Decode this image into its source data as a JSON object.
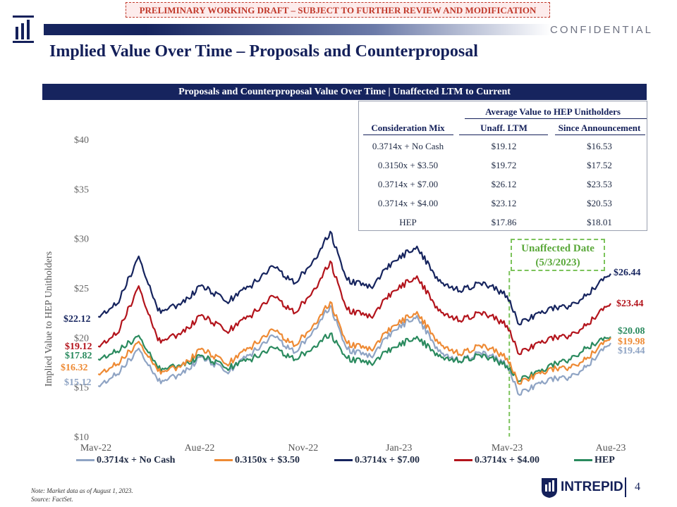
{
  "banner": "PRELIMINARY WORKING DRAFT – SUBJECT TO FURTHER REVIEW AND MODIFICATION",
  "confidential": "CONFIDENTIAL",
  "page_title": "Implied Value Over Time – Proposals and Counterproposal",
  "section_header": "Proposals and Counterproposal Value Over Time | Unaffected LTM to Current",
  "table": {
    "group_header": "Average Value to HEP Unitholders",
    "columns": [
      "Consideration Mix",
      "Unaff. LTM",
      "Since Announcement"
    ],
    "rows": [
      [
        "0.3714x + No Cash",
        "$19.12",
        "$16.53"
      ],
      [
        "0.3150x + $3.50",
        "$19.72",
        "$17.52"
      ],
      [
        "0.3714x + $7.00",
        "$26.12",
        "$23.53"
      ],
      [
        "0.3714x + $4.00",
        "$23.12",
        "$20.53"
      ],
      [
        "HEP",
        "$17.86",
        "$18.01"
      ]
    ]
  },
  "unaffected_box": {
    "line1": "Unaffected Date",
    "line2": "(5/3/2023)"
  },
  "note": "Note: Market data as of August 1, 2023.",
  "source": "Source: FactSet.",
  "brand": "INTREPID",
  "page_number": "4",
  "colors": {
    "navy": "#16245e",
    "no_cash": "#8fa4c4",
    "cash350": "#ee8a34",
    "cash700": "#16245e",
    "cash400": "#b3141c",
    "hep": "#2a8a5e",
    "unaffected": "#7cc35b"
  },
  "chart_data": {
    "type": "line",
    "ylabel": "Implied Value to HEP Unitholders",
    "ylim": [
      10,
      40
    ],
    "yticks": [
      "$10",
      "$15",
      "$20",
      "$25",
      "$30",
      "$35",
      "$40"
    ],
    "xticks": [
      "May-22",
      "Aug-22",
      "Nov-22",
      "Jan-23",
      "May-23",
      "Aug-23"
    ],
    "unaffected_date": "2023-05-03",
    "series": [
      {
        "name": "0.3714x + No Cash",
        "color": "#8fa4c4",
        "start_label": "$15.12",
        "end_label": "$19.44",
        "x": [
          "2022-05-03",
          "2022-05-20",
          "2022-06-08",
          "2022-06-25",
          "2022-07-15",
          "2022-08-03",
          "2022-08-25",
          "2022-09-15",
          "2022-10-05",
          "2022-10-25",
          "2022-11-15",
          "2022-11-25",
          "2022-12-10",
          "2022-12-31",
          "2023-01-20",
          "2023-02-10",
          "2023-03-01",
          "2023-03-20",
          "2023-04-10",
          "2023-05-01",
          "2023-05-12",
          "2023-06-01",
          "2023-06-25",
          "2023-07-10",
          "2023-08-01"
        ],
        "y": [
          15.12,
          16.3,
          18.9,
          15.6,
          16.2,
          18.1,
          16.5,
          18.3,
          20.2,
          18.5,
          21.5,
          23.2,
          18.8,
          18.1,
          20.7,
          22.2,
          18.6,
          17.6,
          18.6,
          17.2,
          14.2,
          15.6,
          16.0,
          17.0,
          19.44
        ]
      },
      {
        "name": "0.3150x + $3.50",
        "color": "#ee8a34",
        "start_label": "$16.32",
        "end_label": "$19.98",
        "x": [
          "2022-05-03",
          "2022-05-20",
          "2022-06-08",
          "2022-06-25",
          "2022-07-15",
          "2022-08-03",
          "2022-08-25",
          "2022-09-15",
          "2022-10-05",
          "2022-10-25",
          "2022-11-15",
          "2022-11-25",
          "2022-12-10",
          "2022-12-31",
          "2023-01-20",
          "2023-02-10",
          "2023-03-01",
          "2023-03-20",
          "2023-04-10",
          "2023-05-01",
          "2023-05-12",
          "2023-06-01",
          "2023-06-25",
          "2023-07-10",
          "2023-08-01"
        ],
        "y": [
          16.32,
          17.3,
          19.6,
          16.6,
          17.0,
          18.9,
          17.3,
          19.0,
          20.8,
          19.2,
          22.0,
          23.6,
          19.4,
          18.8,
          21.2,
          22.6,
          19.4,
          18.3,
          19.3,
          17.9,
          15.3,
          16.6,
          17.0,
          17.8,
          19.98
        ]
      },
      {
        "name": "0.3714x + $7.00",
        "color": "#16245e",
        "start_label": "$22.12",
        "end_label": "$26.44",
        "x": [
          "2022-05-03",
          "2022-05-20",
          "2022-06-08",
          "2022-06-25",
          "2022-07-15",
          "2022-08-03",
          "2022-08-25",
          "2022-09-15",
          "2022-10-05",
          "2022-10-25",
          "2022-11-15",
          "2022-11-25",
          "2022-12-10",
          "2022-12-31",
          "2023-01-20",
          "2023-02-10",
          "2023-03-01",
          "2023-03-20",
          "2023-04-10",
          "2023-05-01",
          "2023-05-12",
          "2023-06-01",
          "2023-06-25",
          "2023-07-10",
          "2023-08-01"
        ],
        "y": [
          22.12,
          23.4,
          28.2,
          22.7,
          23.3,
          25.3,
          23.6,
          25.2,
          27.2,
          25.5,
          28.6,
          30.7,
          25.8,
          25.1,
          27.7,
          29.2,
          25.7,
          24.7,
          25.6,
          24.2,
          21.3,
          22.7,
          23.2,
          24.2,
          26.44
        ]
      },
      {
        "name": "0.3714x + $4.00",
        "color": "#b3141c",
        "start_label": "$19.12",
        "end_label": "$23.44",
        "x": [
          "2022-05-03",
          "2022-05-20",
          "2022-06-08",
          "2022-06-25",
          "2022-07-15",
          "2022-08-03",
          "2022-08-25",
          "2022-09-15",
          "2022-10-05",
          "2022-10-25",
          "2022-11-15",
          "2022-11-25",
          "2022-12-10",
          "2022-12-31",
          "2023-01-20",
          "2023-02-10",
          "2023-03-01",
          "2023-03-20",
          "2023-04-10",
          "2023-05-01",
          "2023-05-12",
          "2023-06-01",
          "2023-06-25",
          "2023-07-10",
          "2023-08-01"
        ],
        "y": [
          19.12,
          20.4,
          25.2,
          19.7,
          20.3,
          22.3,
          20.6,
          22.2,
          24.2,
          22.5,
          25.6,
          27.7,
          22.8,
          22.1,
          24.7,
          26.2,
          22.7,
          21.7,
          22.6,
          21.2,
          18.3,
          19.7,
          20.2,
          21.2,
          23.44
        ]
      },
      {
        "name": "HEP",
        "color": "#2a8a5e",
        "start_label": "$17.82",
        "end_label": "$20.08",
        "x": [
          "2022-05-03",
          "2022-05-20",
          "2022-06-08",
          "2022-06-25",
          "2022-07-15",
          "2022-08-03",
          "2022-08-25",
          "2022-09-15",
          "2022-10-05",
          "2022-10-25",
          "2022-11-15",
          "2022-11-25",
          "2022-12-10",
          "2022-12-31",
          "2023-01-20",
          "2023-02-10",
          "2023-03-01",
          "2023-03-20",
          "2023-04-10",
          "2023-05-01",
          "2023-05-12",
          "2023-06-01",
          "2023-06-25",
          "2023-07-10",
          "2023-08-01"
        ],
        "y": [
          17.82,
          18.6,
          20.2,
          16.9,
          17.1,
          18.2,
          16.9,
          17.8,
          19.0,
          17.8,
          19.5,
          20.4,
          17.9,
          17.4,
          19.0,
          20.1,
          18.1,
          17.6,
          18.3,
          17.1,
          15.6,
          16.8,
          17.8,
          18.9,
          20.08
        ]
      }
    ]
  }
}
